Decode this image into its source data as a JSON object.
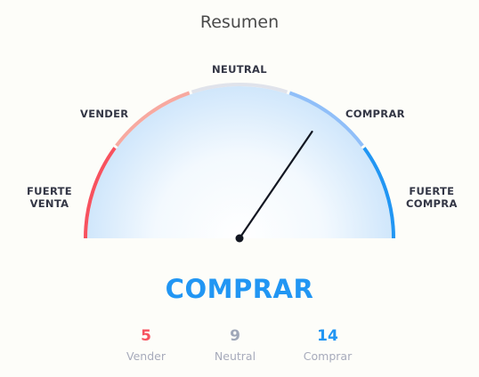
{
  "title": "Resumen",
  "gauge": {
    "zones": {
      "strong_sell": [
        "FUERTE",
        "VENTA"
      ],
      "sell": "VENDER",
      "neutral": "NEUTRAL",
      "buy": "COMPRAR",
      "strong_buy": [
        "FUERTE",
        "COMPRA"
      ]
    },
    "needle_fraction": 0.69,
    "colors": {
      "strong_sell": "#f7525f",
      "sell": "#f7a9a0",
      "neutral": "#e0e3eb",
      "buy": "#90bff9",
      "strong_buy": "#2196f3",
      "needle": "#131722",
      "fill_edge": "#cfe6fb"
    }
  },
  "signal": {
    "text": "COMPRAR",
    "color": "#2196f3"
  },
  "counts": {
    "sell": {
      "value": "5",
      "label": "Vender",
      "color": "#f7525f"
    },
    "neutral": {
      "value": "9",
      "label": "Neutral",
      "color": "#9fa7b8"
    },
    "buy": {
      "value": "14",
      "label": "Comprar",
      "color": "#2196f3"
    }
  }
}
